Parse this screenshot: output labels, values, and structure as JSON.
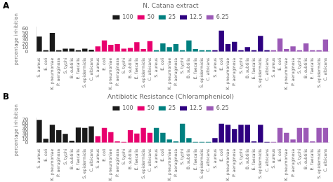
{
  "chart_data": [
    {
      "type": "bar",
      "title": "N. Catana extract",
      "y_label": "percentage inhibition",
      "annotations": [
        "A"
      ],
      "categories": [
        "S. aureus",
        "E. coli",
        "K. pneumoniae",
        "P. aeruginosa",
        "S. typhi",
        "B. subtilis",
        "E. faecalis",
        "S. epidermidis",
        "C. albicans",
        "S. aureus",
        "E. coli",
        "K. pneumoniae",
        "P. aeruginosa",
        "S. typhi",
        "B. subtilis",
        "E. faecalis",
        "S. epidermidis",
        "C. albicans",
        "S. aureus",
        "E. coli",
        "K. pneumoniae",
        "P. aeruginosa",
        "S. typhi",
        "B. subtilis",
        "E. faecalis",
        "S. epidermidis",
        "C. albicans",
        "S. aureus",
        "E. coli",
        "K. pneumoniae",
        "P. aeruginosa",
        "S. typhi",
        "B. subtilis",
        "E. faecalis",
        "S. epidermidis",
        "C. albicans",
        "S. aureus",
        "E. coli",
        "K. pneumoniae",
        "P. aeruginosa",
        "S. typhi",
        "B. subtilis",
        "E. faecalis",
        "S. epidermidis",
        "C. albicans"
      ],
      "series": [
        {
          "name": "100",
          "color": "#1a1a1a",
          "values": [
            40,
            4,
            50,
            4,
            8,
            8,
            4,
            8,
            5,
            null,
            null,
            null,
            null,
            null,
            null,
            null,
            null,
            null,
            null,
            null,
            null,
            null,
            null,
            null,
            null,
            null,
            null,
            null,
            null,
            null,
            null,
            null,
            null,
            null,
            null,
            null,
            null,
            null,
            null,
            null,
            null,
            null,
            null,
            null,
            null
          ]
        },
        {
          "name": "50",
          "color": "#e8006e",
          "values": [
            null,
            null,
            null,
            null,
            null,
            null,
            null,
            null,
            null,
            14,
            30,
            18,
            20,
            8,
            10,
            25,
            7,
            28,
            null,
            null,
            null,
            null,
            null,
            null,
            null,
            null,
            null,
            null,
            null,
            null,
            null,
            null,
            null,
            null,
            null,
            null,
            null,
            null,
            null,
            null,
            null,
            null,
            null,
            null,
            null
          ]
        },
        {
          "name": "25",
          "color": "#008080",
          "values": [
            null,
            null,
            null,
            null,
            null,
            null,
            null,
            null,
            null,
            null,
            null,
            null,
            null,
            null,
            null,
            null,
            null,
            null,
            4,
            22,
            12,
            20,
            4,
            30,
            7,
            4,
            4,
            null,
            null,
            null,
            null,
            null,
            null,
            null,
            null,
            null,
            null,
            null,
            null,
            null,
            null,
            null,
            null,
            null,
            null
          ]
        },
        {
          "name": "12.5",
          "color": "#2e0080",
          "values": [
            null,
            null,
            null,
            null,
            null,
            null,
            null,
            null,
            null,
            null,
            null,
            null,
            null,
            null,
            null,
            null,
            null,
            null,
            null,
            null,
            null,
            null,
            null,
            null,
            null,
            null,
            null,
            4,
            56,
            20,
            26,
            4,
            12,
            4,
            42,
            4,
            null,
            null,
            null,
            null,
            null,
            null,
            null,
            null,
            null
          ]
        },
        {
          "name": "6.25",
          "color": "#9b59b6",
          "values": [
            null,
            null,
            null,
            null,
            null,
            null,
            null,
            null,
            null,
            null,
            null,
            null,
            null,
            null,
            null,
            null,
            null,
            null,
            null,
            null,
            null,
            null,
            null,
            null,
            null,
            null,
            null,
            null,
            null,
            null,
            null,
            null,
            null,
            null,
            null,
            null,
            4,
            35,
            7,
            14,
            4,
            22,
            4,
            4,
            32
          ]
        }
      ],
      "ylim": [
        0,
        65
      ],
      "yticks": [
        0,
        10,
        20,
        30,
        40,
        50,
        60
      ],
      "grid": false,
      "legend": "top"
    },
    {
      "type": "bar",
      "title": "Antibiotic Resistance (Chloramphenicol)",
      "y_label": "percentage inhibition",
      "annotations": [
        "B"
      ],
      "categories": [
        "S. aureus",
        "E. coli",
        "K. pneumoniae",
        "P. aeruginosa",
        "S. typhi",
        "B. subtilis",
        "E. faecalis",
        "S. epidermidis",
        "C. albicans",
        "S. aureus",
        "E. coli",
        "K. pneumoniae",
        "P. aeruginosa",
        "S. typhi",
        "B. subtilis",
        "E. faecalis",
        "S. epidermidis",
        "C. albicans",
        "S. aureus",
        "E. coli",
        "K. pneumoniae",
        "P. aeruginosa",
        "S. typhi",
        "B. subtilis",
        "E. faecalis",
        "S. epidermidis",
        "C. albicans",
        "S. aureus",
        "E. coli",
        "K. pneumoniae",
        "P. aeruginosa",
        "S. typhi",
        "B. subtilis",
        "E. faecalis",
        "S. epidermidis",
        "C. albicans",
        "S. aureus",
        "E. coli",
        "K. pneumoniae",
        "P. aeruginosa",
        "S. typhi",
        "B. subtilis",
        "E. faecalis",
        "S. epidermidis",
        "C. albicans"
      ],
      "series": [
        {
          "name": "100",
          "color": "#1a1a1a",
          "values": [
            70,
            12,
            55,
            38,
            27,
            6,
            46,
            45,
            50,
            null,
            null,
            null,
            null,
            null,
            null,
            null,
            null,
            null,
            null,
            null,
            null,
            null,
            null,
            null,
            null,
            null,
            null,
            null,
            null,
            null,
            null,
            null,
            null,
            null,
            null,
            null,
            null,
            null,
            null,
            null,
            null,
            null,
            null,
            null,
            null
          ]
        },
        {
          "name": "50",
          "color": "#e8006e",
          "values": [
            null,
            null,
            null,
            null,
            null,
            null,
            null,
            null,
            null,
            20,
            45,
            32,
            4,
            2,
            38,
            28,
            45,
            30,
            null,
            null,
            null,
            null,
            null,
            null,
            null,
            null,
            null,
            null,
            null,
            null,
            null,
            null,
            null,
            null,
            null,
            null,
            null,
            null,
            null,
            null,
            null,
            null,
            null,
            null,
            null
          ]
        },
        {
          "name": "25",
          "color": "#008080",
          "values": [
            null,
            null,
            null,
            null,
            null,
            null,
            null,
            null,
            null,
            null,
            null,
            null,
            null,
            null,
            null,
            null,
            null,
            null,
            45,
            30,
            10,
            4,
            58,
            14,
            2,
            2,
            2,
            null,
            null,
            null,
            null,
            null,
            null,
            null,
            null,
            null,
            null,
            null,
            null,
            null,
            null,
            null,
            null,
            null,
            null
          ]
        },
        {
          "name": "12.5",
          "color": "#2e0080",
          "values": [
            null,
            null,
            null,
            null,
            null,
            null,
            null,
            null,
            null,
            null,
            null,
            null,
            null,
            null,
            null,
            null,
            null,
            null,
            null,
            null,
            null,
            null,
            null,
            null,
            null,
            null,
            null,
            14,
            58,
            55,
            42,
            55,
            55,
            4,
            55,
            2,
            null,
            null,
            null,
            null,
            null,
            null,
            null,
            null,
            null
          ]
        },
        {
          "name": "6.25",
          "color": "#9b59b6",
          "values": [
            null,
            null,
            null,
            null,
            null,
            null,
            null,
            null,
            null,
            null,
            null,
            null,
            null,
            null,
            null,
            null,
            null,
            null,
            null,
            null,
            null,
            null,
            null,
            null,
            null,
            null,
            null,
            null,
            null,
            null,
            null,
            null,
            null,
            null,
            null,
            null,
            2,
            45,
            30,
            10,
            45,
            45,
            4,
            45,
            45
          ]
        }
      ],
      "ylim": [
        0,
        75
      ],
      "yticks": [
        0,
        10,
        20,
        30,
        40,
        50,
        60,
        70
      ],
      "grid": false,
      "legend": "top"
    }
  ]
}
